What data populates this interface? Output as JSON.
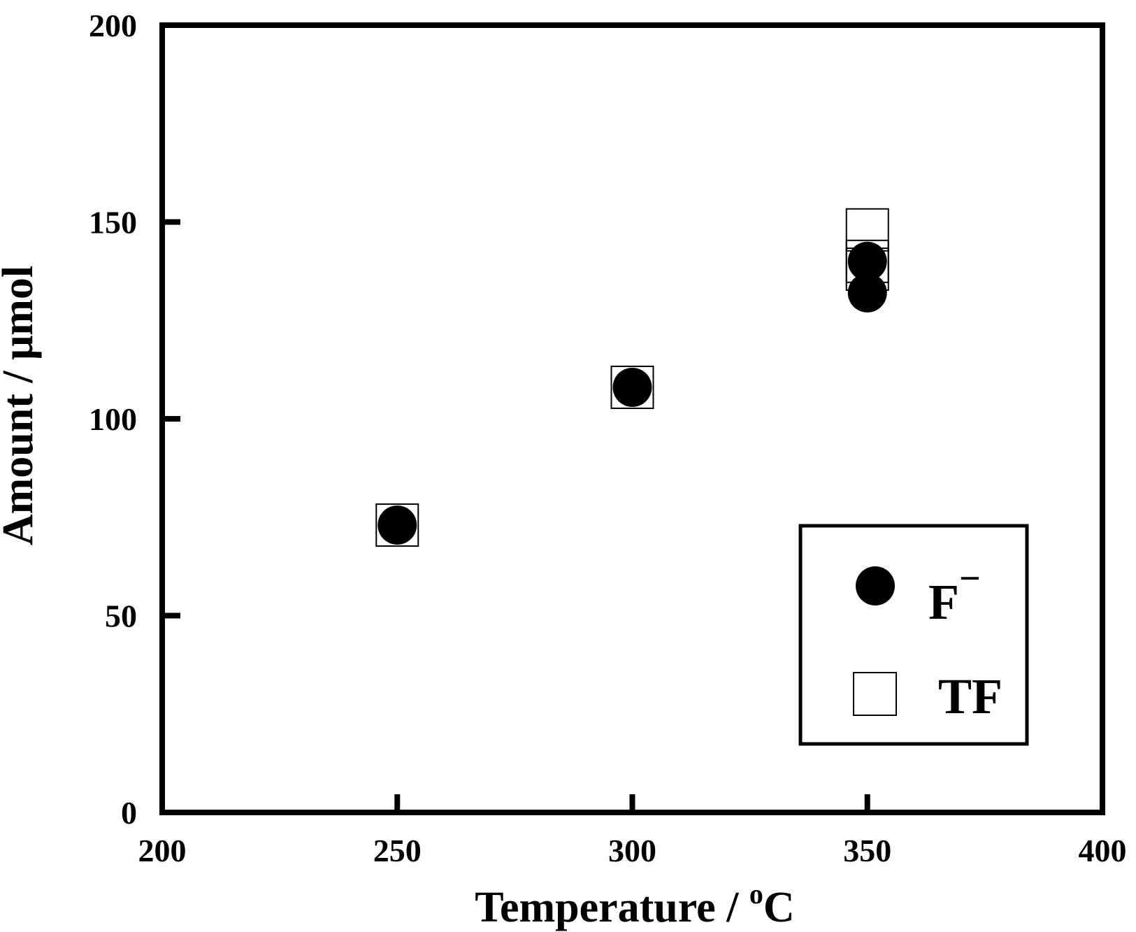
{
  "chart_data": {
    "type": "scatter",
    "xlabel": "Temperature / ",
    "xlabel_sup": "o",
    "xlabel_unit": "C",
    "ylabel": "Amount / μmol",
    "xlim": [
      200,
      400
    ],
    "ylim": [
      0,
      200
    ],
    "x_ticks": [
      200,
      250,
      300,
      350,
      400
    ],
    "y_ticks": [
      0,
      50,
      100,
      150,
      200
    ],
    "grid": false,
    "legend_position": "bottom-right",
    "series": [
      {
        "name": "F",
        "name_sup": "−",
        "marker": "filled-circle",
        "color": "#000000",
        "points": [
          {
            "x": 250,
            "y": 73
          },
          {
            "x": 300,
            "y": 108
          },
          {
            "x": 350,
            "y": 140
          },
          {
            "x": 350,
            "y": 132
          }
        ]
      },
      {
        "name": "TF",
        "marker": "open-square",
        "color": "#000000",
        "points": [
          {
            "x": 250,
            "y": 73
          },
          {
            "x": 300,
            "y": 108
          },
          {
            "x": 350,
            "y": 148
          },
          {
            "x": 350,
            "y": 140
          },
          {
            "x": 350,
            "y": 138
          }
        ]
      }
    ]
  }
}
